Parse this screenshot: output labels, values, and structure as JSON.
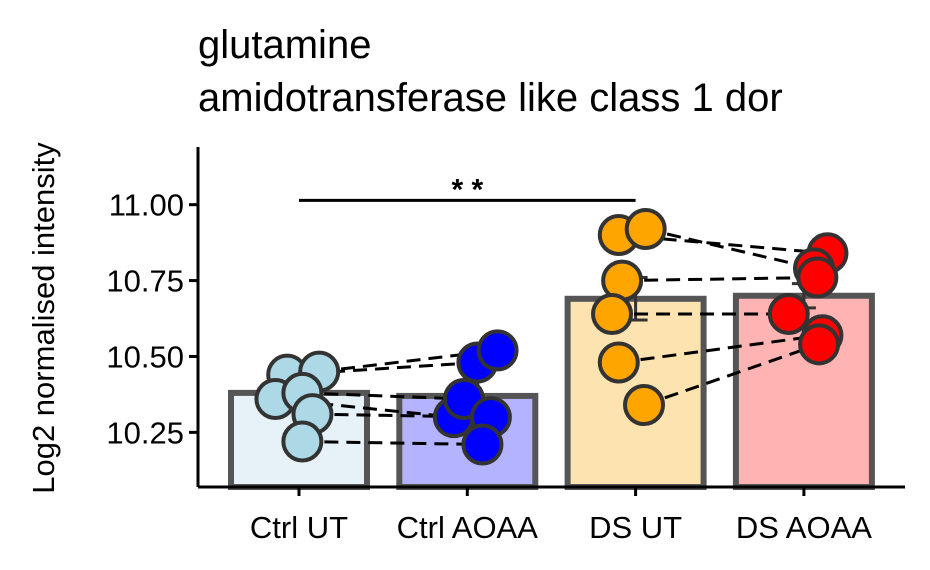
{
  "chart_data": {
    "type": "bar",
    "title_lines": [
      "glutamine",
      "amidotransferase like class 1 dor"
    ],
    "xlabel": "",
    "ylabel": "Log2 normalised intensity",
    "ylim": [
      10.07,
      11.19
    ],
    "yticks": [
      10.25,
      10.5,
      10.75,
      11.0
    ],
    "ytick_labels": [
      "10.25",
      "10.50",
      "10.75",
      "11.00"
    ],
    "categories": [
      "Ctrl UT",
      "Ctrl AOAA",
      "DS UT",
      "DS AOAA"
    ],
    "bar_values": [
      10.38,
      10.37,
      10.69,
      10.7
    ],
    "error_bars": [
      {
        "low": 10.33,
        "high": 10.43
      },
      {
        "low": 10.32,
        "high": 10.41
      },
      {
        "low": 10.62,
        "high": 10.76
      },
      {
        "low": 10.66,
        "high": 10.74
      }
    ],
    "bar_fill_colors": [
      "#e6f2f8",
      "#b3b3ff",
      "#fde3b0",
      "#ffb3b3"
    ],
    "point_colors": [
      "#add8e6",
      "#0000ff",
      "#ffa500",
      "#ff0000"
    ],
    "points": [
      [
        {
          "x": -0.07,
          "y": 10.44
        },
        {
          "x": 0.12,
          "y": 10.45
        },
        {
          "x": -0.14,
          "y": 10.36
        },
        {
          "x": 0.02,
          "y": 10.38
        },
        {
          "x": 0.08,
          "y": 10.31
        },
        {
          "x": 0.02,
          "y": 10.22
        }
      ],
      [
        {
          "x": 0.06,
          "y": 10.48
        },
        {
          "x": 0.18,
          "y": 10.52
        },
        {
          "x": -0.08,
          "y": 10.3
        },
        {
          "x": -0.02,
          "y": 10.36
        },
        {
          "x": 0.14,
          "y": 10.3
        },
        {
          "x": 0.09,
          "y": 10.21
        }
      ],
      [
        {
          "x": -0.1,
          "y": 10.9
        },
        {
          "x": 0.06,
          "y": 10.92
        },
        {
          "x": -0.08,
          "y": 10.75
        },
        {
          "x": -0.14,
          "y": 10.64
        },
        {
          "x": -0.1,
          "y": 10.48
        },
        {
          "x": 0.05,
          "y": 10.34
        }
      ],
      [
        {
          "x": 0.14,
          "y": 10.84
        },
        {
          "x": 0.06,
          "y": 10.79
        },
        {
          "x": 0.08,
          "y": 10.76
        },
        {
          "x": -0.09,
          "y": 10.64
        },
        {
          "x": 0.11,
          "y": 10.57
        },
        {
          "x": 0.09,
          "y": 10.54
        }
      ]
    ],
    "pairs": [
      [
        0,
        1
      ]
    ],
    "significance": {
      "from": 0,
      "to": 2,
      "y": 11.09,
      "label": "* *"
    },
    "grid": false,
    "legend": "none"
  }
}
